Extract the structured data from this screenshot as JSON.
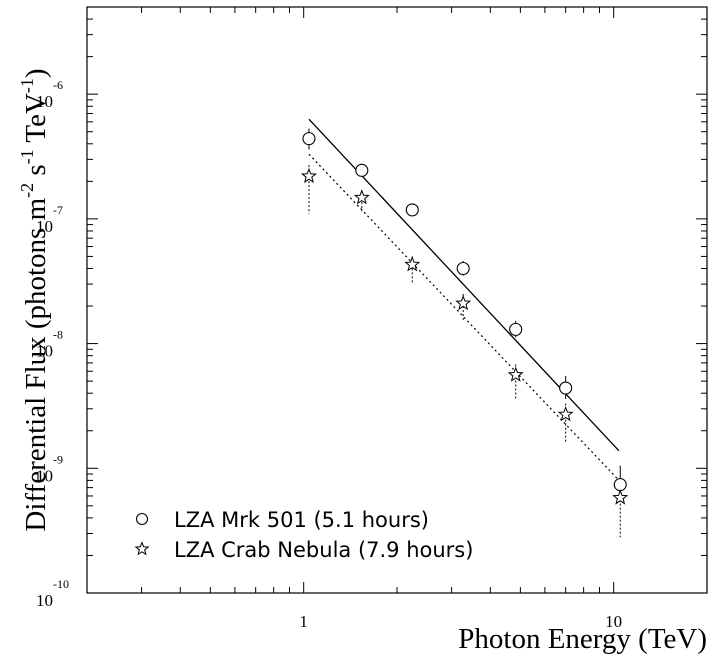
{
  "chart_data": {
    "type": "scatter",
    "title": "",
    "xlabel": "Photon Energy (TeV)",
    "ylabel": {
      "base": "Differential Flux (photons m",
      "exp1": "-2",
      "mid1": " s",
      "exp2": "-1",
      "mid2": " TeV",
      "exp3": "-1",
      "end": ")"
    },
    "x_scale": "log",
    "y_scale": "log",
    "xlim": [
      0.2,
      20
    ],
    "ylim": [
      1e-10,
      5e-06
    ],
    "x_tick_labels": [
      {
        "value": 1,
        "label": "1"
      },
      {
        "value": 10,
        "label": "10"
      }
    ],
    "y_tick_labels": [
      {
        "value": 1e-10,
        "base": "10",
        "exp": "-10"
      },
      {
        "value": 1e-09,
        "base": "10",
        "exp": "-9"
      },
      {
        "value": 1e-08,
        "base": "10",
        "exp": "-8"
      },
      {
        "value": 1e-07,
        "base": "10",
        "exp": "-7"
      },
      {
        "value": 1e-06,
        "base": "10",
        "exp": "-6"
      }
    ],
    "grid": false,
    "legend_position": "bottom-left",
    "series": [
      {
        "name": "LZA Mrk 501 (5.1 hours)",
        "marker": "circle",
        "points": [
          {
            "x": 1.04,
            "y": 4.4e-07,
            "err_low": 3.6e-07,
            "err_high": 5.3e-07
          },
          {
            "x": 1.54,
            "y": 2.45e-07,
            "err_low": 2.2e-07,
            "err_high": 2.75e-07
          },
          {
            "x": 2.24,
            "y": 1.18e-07,
            "err_low": 1.07e-07,
            "err_high": 1.3e-07
          },
          {
            "x": 3.27,
            "y": 4e-08,
            "err_low": 3.5e-08,
            "err_high": 4.6e-08
          },
          {
            "x": 4.83,
            "y": 1.3e-08,
            "err_low": 1.12e-08,
            "err_high": 1.52e-08
          },
          {
            "x": 7.0,
            "y": 4.4e-09,
            "err_low": 3.6e-09,
            "err_high": 5.5e-09
          },
          {
            "x": 10.5,
            "y": 7.4e-10,
            "err_low": 5.6e-10,
            "err_high": 1.05e-09
          }
        ],
        "fit": {
          "style": "solid",
          "x": [
            1.04,
            10.4
          ],
          "y": [
            6.3e-07,
            1.38e-09
          ]
        }
      },
      {
        "name": "LZA Crab Nebula (7.9 hours)",
        "marker": "star",
        "points": [
          {
            "x": 1.04,
            "y": 2.2e-07,
            "err_low": 1.1e-07,
            "err_high": 2.7e-07
          },
          {
            "x": 1.54,
            "y": 1.48e-07,
            "err_low": 1.15e-07,
            "err_high": 1.7e-07
          },
          {
            "x": 2.24,
            "y": 4.3e-08,
            "err_low": 3e-08,
            "err_high": 5e-08
          },
          {
            "x": 3.27,
            "y": 2.1e-08,
            "err_low": 1.5e-08,
            "err_high": 2.5e-08
          },
          {
            "x": 4.83,
            "y": 5.6e-09,
            "err_low": 3.6e-09,
            "err_high": 6.8e-09
          },
          {
            "x": 7.0,
            "y": 2.7e-09,
            "err_low": 1.6e-09,
            "err_high": 3.3e-09
          },
          {
            "x": 10.5,
            "y": 5.8e-10,
            "err_low": 2.8e-10,
            "err_high": 7e-10
          }
        ],
        "fit": {
          "style": "dotted",
          "x": [
            1.04,
            10.4
          ],
          "y": [
            3.3e-07,
            8e-10
          ]
        }
      }
    ]
  }
}
